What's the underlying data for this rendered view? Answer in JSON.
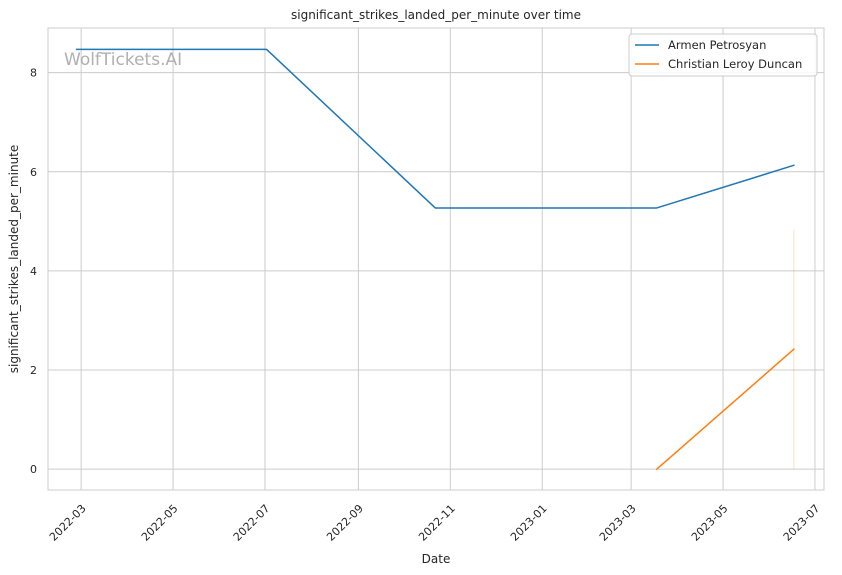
{
  "chart_data": {
    "type": "line",
    "title": "significant_strikes_landed_per_minute over time",
    "xlabel": "Date",
    "ylabel": "significant_strikes_landed_per_minute",
    "watermark": "WolfTickets.AI",
    "x_ticks": [
      "2022-03",
      "2022-05",
      "2022-07",
      "2022-09",
      "2022-11",
      "2023-01",
      "2023-03",
      "2023-05",
      "2023-07"
    ],
    "y_ticks": [
      "0",
      "2",
      "4",
      "6",
      "8"
    ],
    "ylim": [
      -0.42,
      8.9
    ],
    "xlim": [
      "2022-02-07",
      "2023-07-07"
    ],
    "grid": true,
    "legend_position": "top-right",
    "series": [
      {
        "name": "Armen Petrosyan",
        "color": "#1f77b4",
        "points": [
          {
            "x": "2022-02-26",
            "y": 8.47
          },
          {
            "x": "2022-07-02",
            "y": 8.47
          },
          {
            "x": "2022-10-22",
            "y": 5.27
          },
          {
            "x": "2023-03-18",
            "y": 5.27
          },
          {
            "x": "2023-06-17",
            "y": 6.13
          }
        ]
      },
      {
        "name": "Christian Leroy Duncan",
        "color": "#ff7f0e",
        "points": [
          {
            "x": "2023-03-18",
            "y": 0.0
          },
          {
            "x": "2023-06-17",
            "y": 2.42
          }
        ]
      }
    ],
    "annotations": [
      {
        "type": "faint-vertical-line",
        "x": "2023-06-17",
        "y_from": 0.0,
        "y_to": 4.83,
        "color": "#ff7f0e"
      }
    ]
  }
}
